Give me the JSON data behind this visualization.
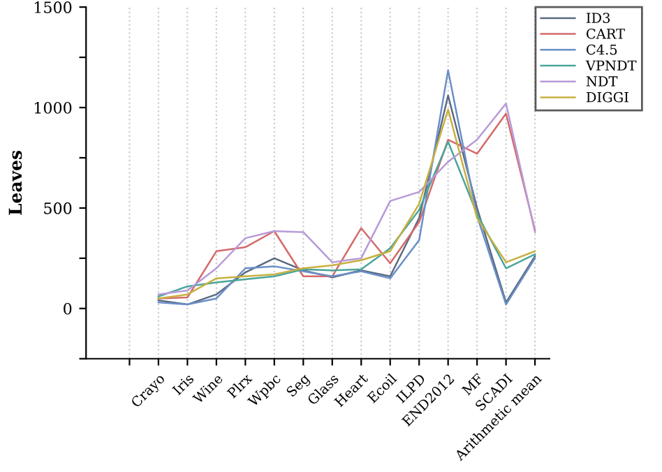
{
  "chart_data": {
    "type": "line",
    "ylabel": "Leaves",
    "categories": [
      null,
      "Crayo",
      "Iris",
      "Wine",
      "Plrx",
      "Wpbc",
      "Seg",
      "Glass",
      "Heart",
      "Ecoil",
      "ILPD",
      "END2012",
      "MF",
      "SCADI",
      "Arithmetic mean"
    ],
    "series": [
      {
        "name": "ID3",
        "color": "#5a6a80",
        "values": [
          null,
          40,
          20,
          70,
          180,
          250,
          190,
          155,
          190,
          160,
          450,
          1060,
          500,
          30,
          260
        ]
      },
      {
        "name": "CART",
        "color": "#d46a6a",
        "values": [
          null,
          50,
          55,
          285,
          305,
          385,
          160,
          160,
          400,
          225,
          430,
          840,
          770,
          970,
          390
        ]
      },
      {
        "name": "C4.5",
        "color": "#6a8fc8",
        "values": [
          null,
          30,
          20,
          50,
          200,
          210,
          185,
          160,
          185,
          150,
          340,
          1185,
          460,
          20,
          250
        ]
      },
      {
        "name": "VPNDT",
        "color": "#4aa59a",
        "values": [
          null,
          60,
          110,
          130,
          145,
          160,
          195,
          190,
          195,
          300,
          490,
          830,
          470,
          200,
          270
        ]
      },
      {
        "name": "NDT",
        "color": "#b79ad9",
        "values": [
          null,
          70,
          90,
          200,
          350,
          385,
          380,
          230,
          250,
          535,
          580,
          730,
          840,
          1020,
          380
        ]
      },
      {
        "name": "DIGGI",
        "color": "#c8b040",
        "values": [
          null,
          50,
          70,
          150,
          160,
          170,
          200,
          215,
          240,
          285,
          520,
          990,
          450,
          230,
          285
        ]
      }
    ],
    "ylim": [
      -250,
      1500
    ],
    "yticks": [
      {
        "value": -250,
        "label": null
      },
      0,
      {
        "value": 250,
        "label": null
      },
      500,
      {
        "value": 750,
        "label": null
      },
      1000,
      {
        "value": 1250,
        "label": null
      },
      1500
    ],
    "grid": "x",
    "legend": "top right",
    "marker": "none",
    "line_style": "solid"
  }
}
